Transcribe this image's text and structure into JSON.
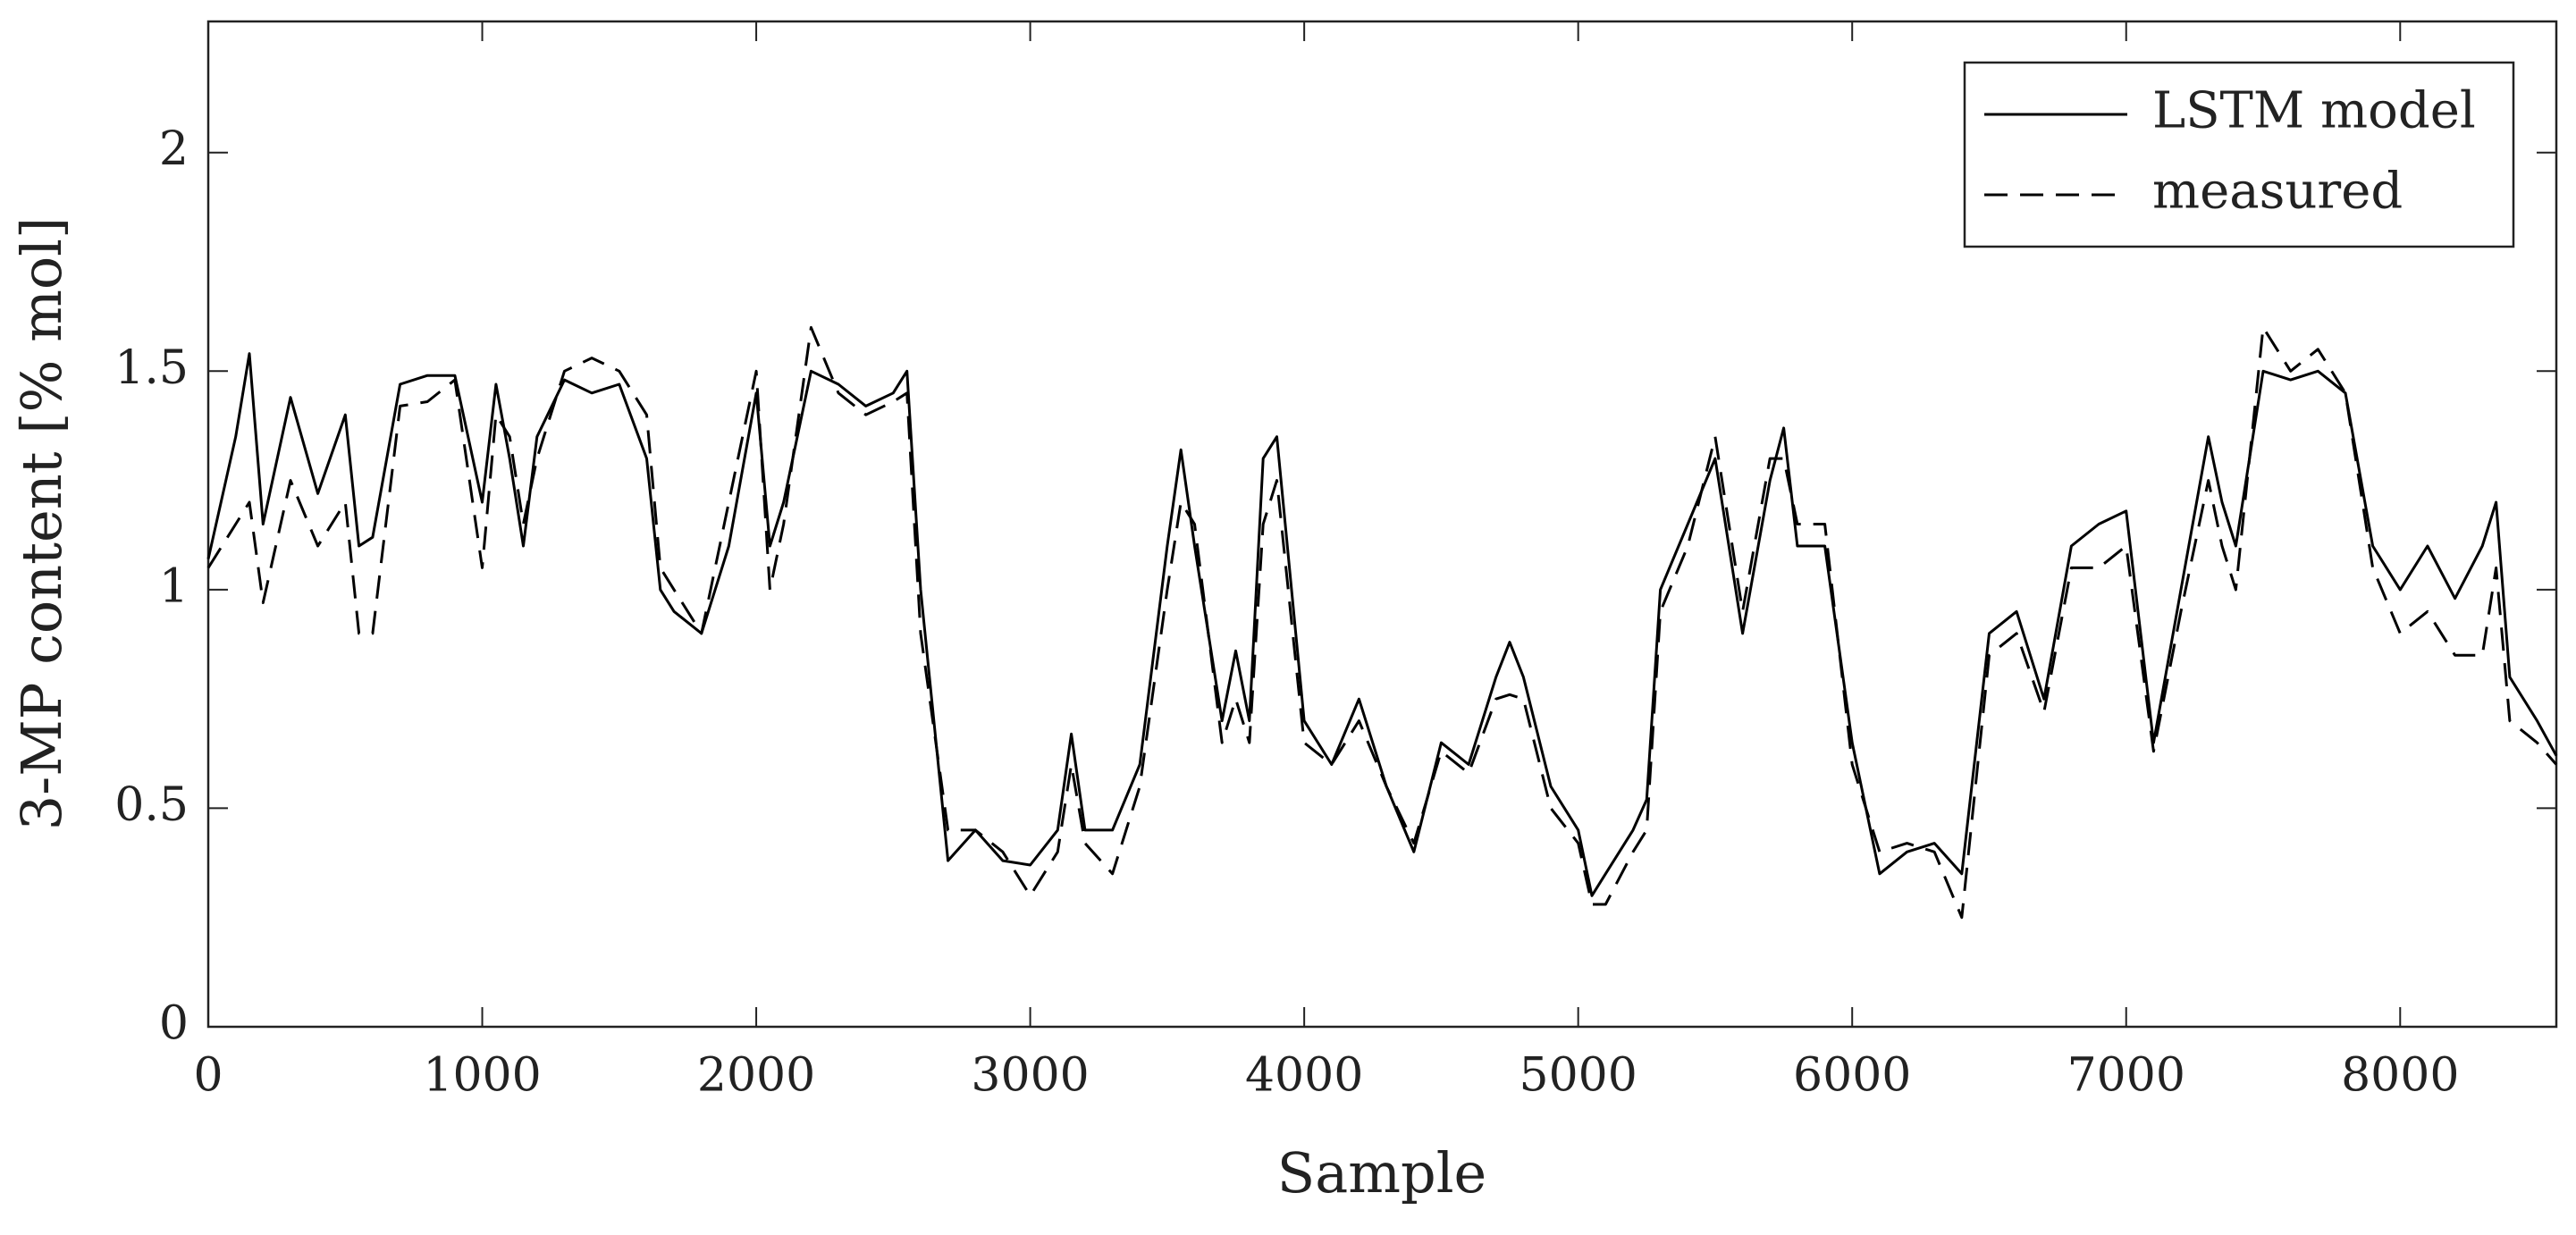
{
  "chart_data": {
    "type": "line",
    "xlabel": "Sample",
    "ylabel": "3-MP content [% mol]",
    "x": [
      0,
      100,
      150,
      200,
      300,
      400,
      500,
      550,
      600,
      700,
      800,
      900,
      1000,
      1050,
      1100,
      1150,
      1200,
      1300,
      1400,
      1500,
      1600,
      1650,
      1700,
      1800,
      1900,
      2000,
      2050,
      2100,
      2200,
      2300,
      2400,
      2500,
      2550,
      2600,
      2700,
      2800,
      2900,
      3000,
      3100,
      3150,
      3200,
      3300,
      3400,
      3500,
      3550,
      3600,
      3700,
      3750,
      3800,
      3850,
      3900,
      4000,
      4100,
      4200,
      4300,
      4400,
      4500,
      4600,
      4700,
      4750,
      4800,
      4900,
      5000,
      5050,
      5100,
      5200,
      5250,
      5300,
      5400,
      5500,
      5600,
      5700,
      5750,
      5800,
      5900,
      6000,
      6100,
      6200,
      6300,
      6400,
      6500,
      6600,
      6700,
      6800,
      6900,
      7000,
      7100,
      7200,
      7300,
      7350,
      7400,
      7500,
      7600,
      7700,
      7800,
      7900,
      8000,
      8100,
      8200,
      8300,
      8350,
      8400,
      8500,
      8570
    ],
    "series": [
      {
        "name": "LSTM model",
        "color": "#000000",
        "dash": "solid",
        "values": [
          1.07,
          1.35,
          1.54,
          1.15,
          1.44,
          1.22,
          1.4,
          1.1,
          1.12,
          1.47,
          1.49,
          1.49,
          1.2,
          1.47,
          1.3,
          1.1,
          1.35,
          1.48,
          1.45,
          1.47,
          1.3,
          1.0,
          0.95,
          0.9,
          1.1,
          1.45,
          1.1,
          1.2,
          1.5,
          1.47,
          1.42,
          1.45,
          1.5,
          1.0,
          0.38,
          0.45,
          0.38,
          0.37,
          0.45,
          0.67,
          0.45,
          0.45,
          0.6,
          1.1,
          1.32,
          1.1,
          0.7,
          0.86,
          0.7,
          1.3,
          1.35,
          0.7,
          0.6,
          0.75,
          0.55,
          0.4,
          0.65,
          0.6,
          0.8,
          0.88,
          0.8,
          0.55,
          0.45,
          0.3,
          0.35,
          0.45,
          0.52,
          1.0,
          1.15,
          1.3,
          0.9,
          1.25,
          1.37,
          1.1,
          1.1,
          0.65,
          0.35,
          0.4,
          0.42,
          0.35,
          0.9,
          0.95,
          0.75,
          1.1,
          1.15,
          1.18,
          0.65,
          1.0,
          1.35,
          1.2,
          1.1,
          1.5,
          1.48,
          1.5,
          1.45,
          1.1,
          1.0,
          1.1,
          0.98,
          1.1,
          1.2,
          0.8,
          0.7,
          0.62
        ]
      },
      {
        "name": "measured",
        "color": "#000000",
        "dash": "dashed",
        "values": [
          1.05,
          1.15,
          1.2,
          0.97,
          1.25,
          1.1,
          1.2,
          0.9,
          0.9,
          1.42,
          1.43,
          1.48,
          1.05,
          1.4,
          1.35,
          1.15,
          1.3,
          1.5,
          1.53,
          1.5,
          1.4,
          1.05,
          1.0,
          0.9,
          1.2,
          1.5,
          1.0,
          1.15,
          1.6,
          1.45,
          1.4,
          1.43,
          1.45,
          0.9,
          0.45,
          0.45,
          0.4,
          0.3,
          0.4,
          0.6,
          0.42,
          0.35,
          0.55,
          1.0,
          1.2,
          1.15,
          0.65,
          0.75,
          0.65,
          1.15,
          1.25,
          0.65,
          0.6,
          0.7,
          0.55,
          0.42,
          0.63,
          0.58,
          0.75,
          0.76,
          0.75,
          0.5,
          0.42,
          0.28,
          0.28,
          0.4,
          0.45,
          0.95,
          1.1,
          1.35,
          0.95,
          1.3,
          1.3,
          1.15,
          1.15,
          0.6,
          0.4,
          0.42,
          0.4,
          0.25,
          0.85,
          0.9,
          0.72,
          1.05,
          1.05,
          1.1,
          0.63,
          0.95,
          1.25,
          1.1,
          1.0,
          1.6,
          1.5,
          1.55,
          1.45,
          1.05,
          0.9,
          0.95,
          0.85,
          0.85,
          1.05,
          0.7,
          0.65,
          0.6
        ]
      }
    ],
    "xlim": [
      0,
      8570
    ],
    "xticks": [
      0,
      1000,
      2000,
      3000,
      4000,
      5000,
      6000,
      7000,
      8000
    ],
    "ylim": [
      0,
      2.3
    ],
    "yticks": [
      0,
      0.5,
      1,
      1.5,
      2
    ],
    "grid": false,
    "legend": "upper right"
  }
}
